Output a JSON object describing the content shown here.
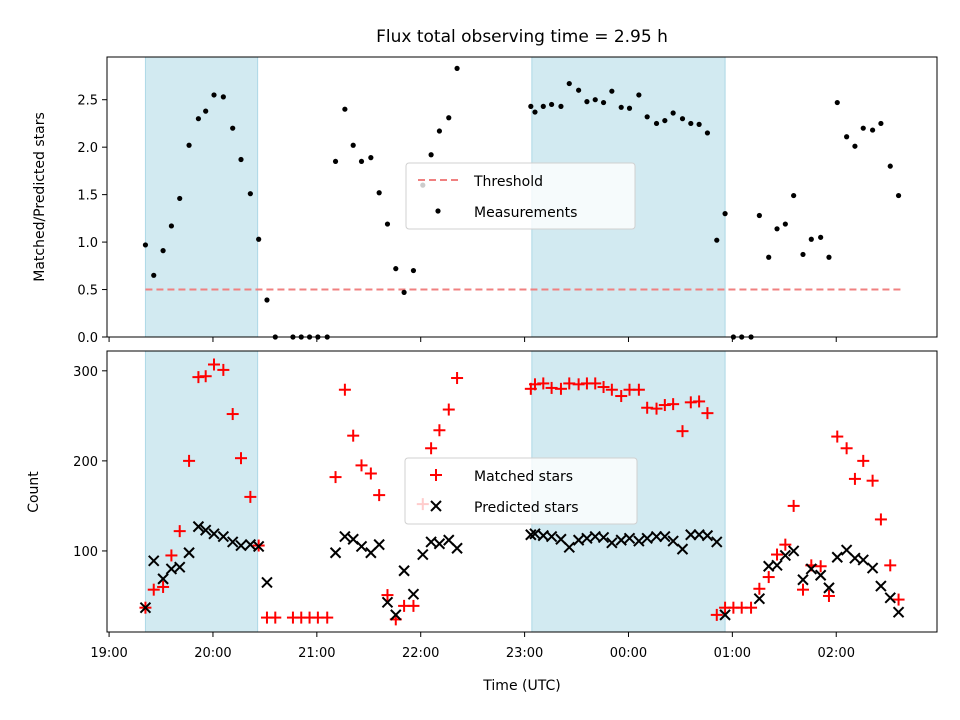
{
  "chart_data": [
    {
      "type": "scatter",
      "title": "Flux total observing time = 2.95 h",
      "xlabel": "",
      "ylabel": "Matched/Predicted stars",
      "ylim": [
        0,
        2.95
      ],
      "yticks": [
        "0.0",
        "0.5",
        "1.0",
        "1.5",
        "2.0",
        "2.5"
      ],
      "ytick_values": [
        0,
        0.5,
        1.0,
        1.5,
        2.0,
        2.5
      ],
      "xlim_hours": [
        18.98,
        26.97
      ],
      "shaded_intervals": [
        [
          19.35,
          20.43
        ],
        [
          23.07,
          24.93
        ]
      ],
      "shade_color": "#add8e6",
      "legend": {
        "placement": "center",
        "entries": [
          "Threshold",
          "Measurements"
        ]
      },
      "threshold": {
        "name": "Threshold",
        "value": 0.5,
        "x_range": [
          19.35,
          26.62
        ],
        "color": "#f08080"
      },
      "series": [
        {
          "name": "Measurements",
          "marker": "dot",
          "color": "#000000",
          "x": [
            19.35,
            19.43,
            19.52,
            19.6,
            19.68,
            19.77,
            19.86,
            19.93,
            20.01,
            20.1,
            20.19,
            20.27,
            20.36,
            20.44,
            20.52,
            20.6,
            20.77,
            20.85,
            20.93,
            21.01,
            21.1,
            21.18,
            21.27,
            21.35,
            21.43,
            21.52,
            21.6,
            21.68,
            21.76,
            21.84,
            21.93,
            22.02,
            22.1,
            22.18,
            22.27,
            22.35,
            23.06,
            23.1,
            23.18,
            23.26,
            23.35,
            23.43,
            23.52,
            23.6,
            23.68,
            23.76,
            23.84,
            23.93,
            24.01,
            24.1,
            24.18,
            24.27,
            24.35,
            24.43,
            24.52,
            24.6,
            24.68,
            24.76,
            24.85,
            24.93,
            25.01,
            25.09,
            25.18,
            25.26,
            25.35,
            25.43,
            25.51,
            25.59,
            25.68,
            25.76,
            25.85,
            25.93,
            26.01,
            26.1,
            26.18,
            26.26,
            26.35,
            26.43,
            26.52,
            26.6
          ],
          "y": [
            0.97,
            0.65,
            0.91,
            1.17,
            1.46,
            2.02,
            2.3,
            2.38,
            2.55,
            2.53,
            2.2,
            1.87,
            1.51,
            1.03,
            0.39,
            0.0,
            0.0,
            0.0,
            0.0,
            0.0,
            0.0,
            1.85,
            2.4,
            2.02,
            1.85,
            1.89,
            1.52,
            1.19,
            0.72,
            0.47,
            0.7,
            1.6,
            1.92,
            2.17,
            2.31,
            2.83,
            2.43,
            2.37,
            2.43,
            2.45,
            2.43,
            2.67,
            2.6,
            2.48,
            2.5,
            2.47,
            2.59,
            2.42,
            2.41,
            2.55,
            2.32,
            2.25,
            2.28,
            2.36,
            2.3,
            2.25,
            2.24,
            2.15,
            1.02,
            1.3,
            0.0,
            0.0,
            0.0,
            1.28,
            0.84,
            1.14,
            1.19,
            1.49,
            0.87,
            1.03,
            1.05,
            0.84,
            2.47,
            2.11,
            2.01,
            2.2,
            2.18,
            2.25,
            1.8,
            1.49
          ]
        }
      ]
    },
    {
      "type": "scatter",
      "title": "",
      "xlabel": "Time (UTC)",
      "ylabel": "Count",
      "ylim": [
        10,
        322
      ],
      "yticks": [
        "100",
        "200",
        "300"
      ],
      "ytick_values": [
        100,
        200,
        300
      ],
      "xlim_hours": [
        18.98,
        26.97
      ],
      "xtick_hours": [
        19,
        20,
        21,
        22,
        23,
        24,
        25,
        26
      ],
      "xticks": [
        "19:00",
        "20:00",
        "21:00",
        "22:00",
        "23:00",
        "00:00",
        "01:00",
        "02:00"
      ],
      "shaded_intervals": [
        [
          19.35,
          20.43
        ],
        [
          23.07,
          24.93
        ]
      ],
      "shade_color": "#add8e6",
      "legend": {
        "placement": "center",
        "entries": [
          "Matched stars",
          "Predicted stars"
        ]
      },
      "series": [
        {
          "name": "Matched stars",
          "marker": "plus",
          "color": "#ff0000",
          "x": [
            19.35,
            19.43,
            19.52,
            19.6,
            19.68,
            19.77,
            19.86,
            19.93,
            20.01,
            20.1,
            20.19,
            20.27,
            20.36,
            20.44,
            20.52,
            20.6,
            20.77,
            20.85,
            20.93,
            21.01,
            21.1,
            21.18,
            21.27,
            21.35,
            21.43,
            21.52,
            21.6,
            21.68,
            21.76,
            21.84,
            21.93,
            22.02,
            22.1,
            22.18,
            22.27,
            22.35,
            23.06,
            23.1,
            23.18,
            23.26,
            23.35,
            23.43,
            23.52,
            23.6,
            23.68,
            23.76,
            23.84,
            23.93,
            24.01,
            24.1,
            24.18,
            24.27,
            24.35,
            24.43,
            24.52,
            24.6,
            24.68,
            24.76,
            24.85,
            24.93,
            25.01,
            25.09,
            25.18,
            25.26,
            25.35,
            25.43,
            25.51,
            25.59,
            25.68,
            25.76,
            25.85,
            25.93,
            26.01,
            26.1,
            26.18,
            26.26,
            26.35,
            26.43,
            26.52,
            26.6
          ],
          "y": [
            37,
            57,
            60,
            95,
            122,
            200,
            293,
            294,
            307,
            301,
            252,
            203,
            160,
            106,
            26,
            26,
            26,
            26,
            26,
            26,
            26,
            182,
            279,
            228,
            195,
            186,
            162,
            51,
            24,
            39,
            39,
            152,
            214,
            234,
            257,
            292,
            280,
            285,
            286,
            281,
            280,
            286,
            285,
            286,
            286,
            282,
            279,
            272,
            279,
            279,
            259,
            258,
            262,
            263,
            233,
            265,
            266,
            253,
            29,
            37,
            37,
            37,
            37,
            58,
            71,
            96,
            107,
            150,
            57,
            84,
            83,
            50,
            227,
            214,
            180,
            200,
            178,
            135,
            84,
            46
          ]
        },
        {
          "name": "Predicted stars",
          "marker": "x",
          "color": "#000000",
          "x": [
            19.35,
            19.43,
            19.52,
            19.6,
            19.68,
            19.77,
            19.86,
            19.93,
            20.01,
            20.1,
            20.19,
            20.27,
            20.36,
            20.44,
            20.52,
            21.18,
            21.27,
            21.35,
            21.43,
            21.52,
            21.6,
            21.68,
            21.76,
            21.84,
            21.93,
            22.02,
            22.1,
            22.18,
            22.27,
            22.35,
            23.06,
            23.1,
            23.18,
            23.26,
            23.35,
            23.43,
            23.52,
            23.6,
            23.68,
            23.76,
            23.84,
            23.93,
            24.01,
            24.1,
            24.18,
            24.27,
            24.35,
            24.43,
            24.52,
            24.6,
            24.68,
            24.76,
            24.85,
            24.93,
            25.26,
            25.35,
            25.43,
            25.51,
            25.59,
            25.68,
            25.76,
            25.85,
            25.93,
            26.01,
            26.1,
            26.18,
            26.26,
            26.35,
            26.43,
            26.52,
            26.6
          ],
          "y": [
            37,
            89,
            69,
            80,
            82,
            98,
            127,
            123,
            119,
            116,
            110,
            106,
            107,
            105,
            65,
            98,
            116,
            113,
            105,
            98,
            107,
            43,
            29,
            78,
            52,
            96,
            110,
            108,
            112,
            103,
            118,
            119,
            117,
            116,
            113,
            104,
            112,
            114,
            116,
            115,
            109,
            112,
            114,
            111,
            114,
            116,
            116,
            111,
            102,
            118,
            118,
            117,
            110,
            29,
            47,
            83,
            84,
            95,
            100,
            68,
            80,
            73,
            59,
            93,
            101,
            92,
            90,
            81,
            61,
            48,
            32
          ]
        }
      ]
    }
  ]
}
